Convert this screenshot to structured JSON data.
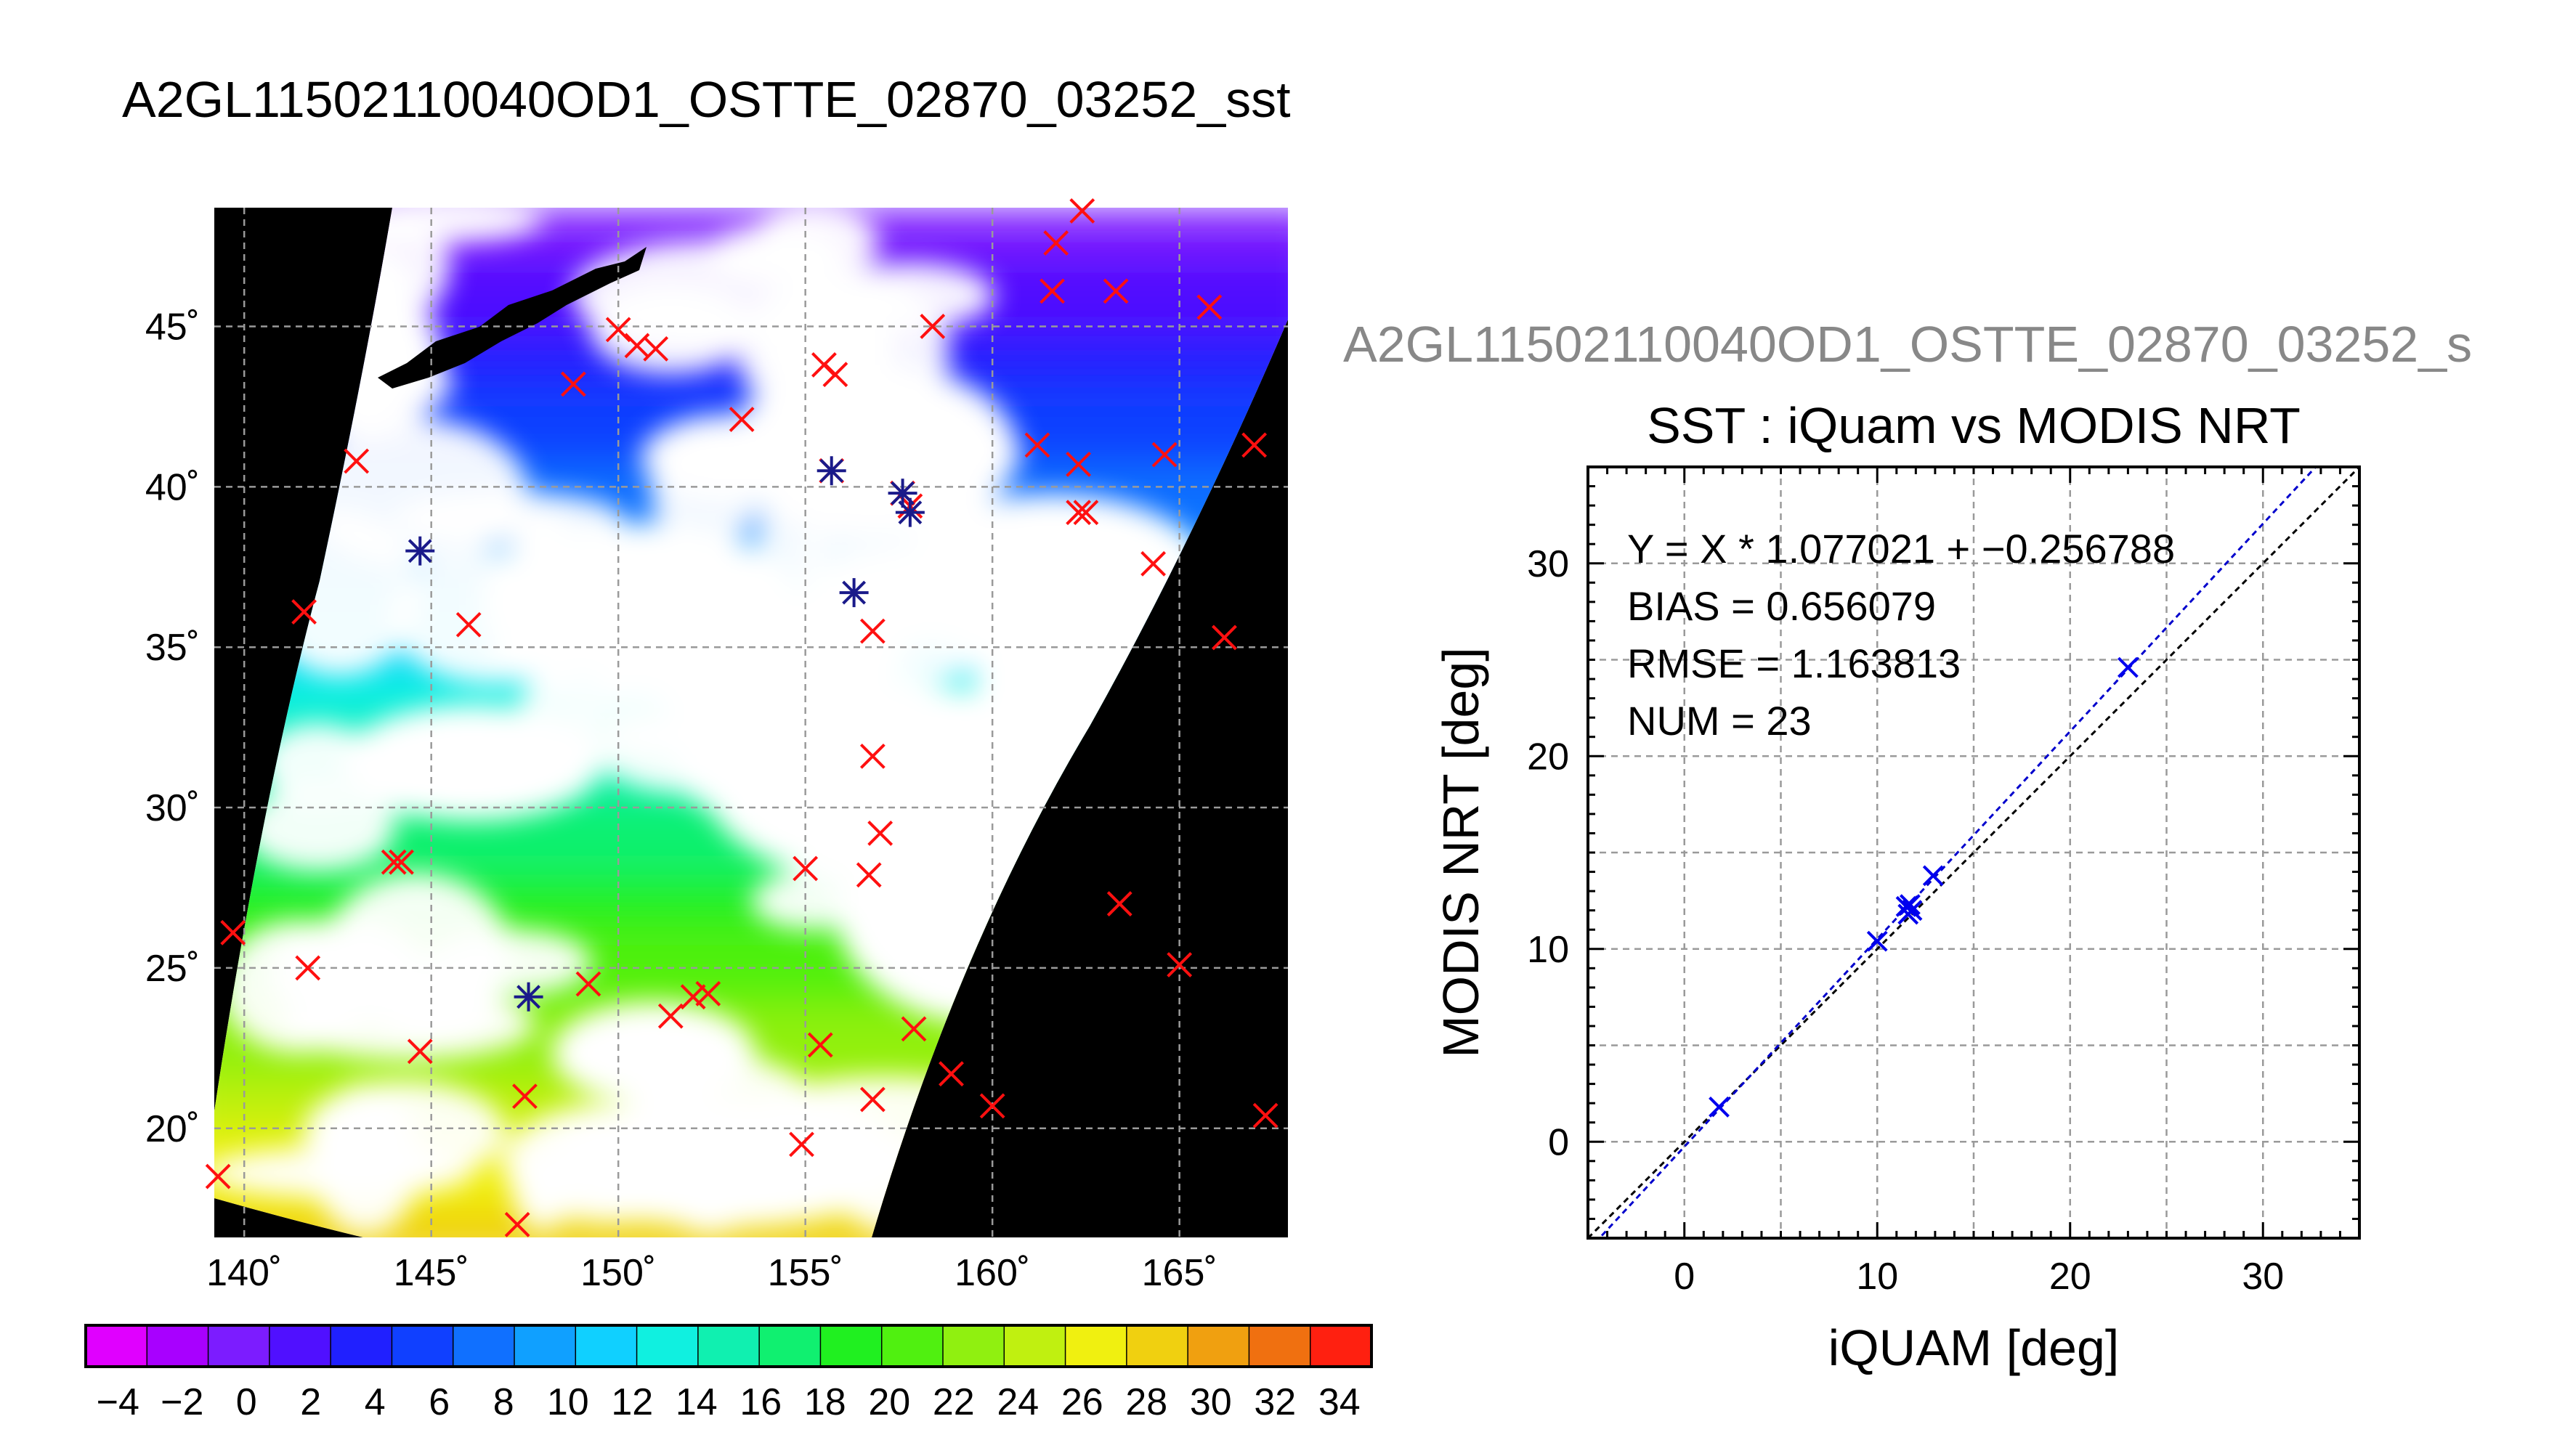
{
  "figure_title": "A2GL11502110040OD1_OSTTE_02870_03252_sst",
  "colors": {
    "background": "#ffffff",
    "map_background": "#000000",
    "cloud": "#ffffff",
    "grid": "#9a9a9a",
    "match_marker": "#ff1010",
    "overlap_marker": "#1a1a8a",
    "scatter_marker": "#0000ee",
    "fit_line": "#0000cc",
    "one_to_one_line": "#000000",
    "subtitle": "#888888"
  },
  "chart_data": [
    {
      "type": "map",
      "title": "",
      "lon_ticks": [
        "140˚",
        "145˚",
        "150˚",
        "155˚",
        "160˚",
        "165˚"
      ],
      "lat_ticks": [
        "20˚",
        "25˚",
        "30˚",
        "35˚",
        "40˚",
        "45˚"
      ],
      "lon_values": [
        140,
        145,
        150,
        155,
        160,
        165
      ],
      "lat_values": [
        20,
        25,
        30,
        35,
        40,
        45
      ],
      "lon_range": [
        139.2,
        167.9
      ],
      "lat_range": [
        16.6,
        48.7
      ],
      "grid": true,
      "colorbar": {
        "labels": [
          "−4",
          "−2",
          "0",
          "2",
          "4",
          "6",
          "8",
          "10",
          "12",
          "14",
          "16",
          "18",
          "20",
          "22",
          "24",
          "26",
          "28",
          "30",
          "32",
          "34"
        ],
        "min": -5,
        "max": 35,
        "step": 2,
        "colors": [
          "#e000ff",
          "#a800ff",
          "#7c1cff",
          "#5010ff",
          "#2020ff",
          "#1040ff",
          "#1070ff",
          "#10a0ff",
          "#10d0ff",
          "#10f0e0",
          "#10f0b0",
          "#10f070",
          "#20f020",
          "#50f010",
          "#90f010",
          "#c0f010",
          "#f0f010",
          "#f0d010",
          "#f0a010",
          "#f07010",
          "#ff2010"
        ]
      },
      "matchups_red": [
        {
          "lon": 162.4,
          "lat": 48.6
        },
        {
          "lon": 161.7,
          "lat": 47.6
        },
        {
          "lon": 161.6,
          "lat": 46.1
        },
        {
          "lon": 163.3,
          "lat": 46.1
        },
        {
          "lon": 165.8,
          "lat": 45.6
        },
        {
          "lon": 158.4,
          "lat": 45.0
        },
        {
          "lon": 150.0,
          "lat": 44.9
        },
        {
          "lon": 150.5,
          "lat": 44.4
        },
        {
          "lon": 151.0,
          "lat": 44.3
        },
        {
          "lon": 155.5,
          "lat": 43.8
        },
        {
          "lon": 155.8,
          "lat": 43.5
        },
        {
          "lon": 148.8,
          "lat": 43.2
        },
        {
          "lon": 153.3,
          "lat": 42.1
        },
        {
          "lon": 161.2,
          "lat": 41.3
        },
        {
          "lon": 164.6,
          "lat": 41.0
        },
        {
          "lon": 167.0,
          "lat": 41.3
        },
        {
          "lon": 162.3,
          "lat": 40.7
        },
        {
          "lon": 143.0,
          "lat": 40.8
        },
        {
          "lon": 155.7,
          "lat": 40.5
        },
        {
          "lon": 157.6,
          "lat": 39.8
        },
        {
          "lon": 157.8,
          "lat": 39.4
        },
        {
          "lon": 162.3,
          "lat": 39.2
        },
        {
          "lon": 162.5,
          "lat": 39.2
        },
        {
          "lon": 164.3,
          "lat": 37.6
        },
        {
          "lon": 141.6,
          "lat": 36.1
        },
        {
          "lon": 146.0,
          "lat": 35.7
        },
        {
          "lon": 156.8,
          "lat": 35.5
        },
        {
          "lon": 166.2,
          "lat": 35.3
        },
        {
          "lon": 156.8,
          "lat": 31.6
        },
        {
          "lon": 157.0,
          "lat": 29.2
        },
        {
          "lon": 144.0,
          "lat": 28.3
        },
        {
          "lon": 144.2,
          "lat": 28.3
        },
        {
          "lon": 155.0,
          "lat": 28.1
        },
        {
          "lon": 156.7,
          "lat": 27.9
        },
        {
          "lon": 163.4,
          "lat": 27.0
        },
        {
          "lon": 139.7,
          "lat": 26.1
        },
        {
          "lon": 141.7,
          "lat": 25.0
        },
        {
          "lon": 165.0,
          "lat": 25.1
        },
        {
          "lon": 149.2,
          "lat": 24.5
        },
        {
          "lon": 152.0,
          "lat": 24.1
        },
        {
          "lon": 152.4,
          "lat": 24.2
        },
        {
          "lon": 151.4,
          "lat": 23.5
        },
        {
          "lon": 157.9,
          "lat": 23.1
        },
        {
          "lon": 155.4,
          "lat": 22.6
        },
        {
          "lon": 144.7,
          "lat": 22.4
        },
        {
          "lon": 158.9,
          "lat": 21.7
        },
        {
          "lon": 147.5,
          "lat": 21.0
        },
        {
          "lon": 156.8,
          "lat": 20.9
        },
        {
          "lon": 160.0,
          "lat": 20.7
        },
        {
          "lon": 167.3,
          "lat": 20.4
        },
        {
          "lon": 154.9,
          "lat": 19.5
        },
        {
          "lon": 139.3,
          "lat": 18.5
        },
        {
          "lon": 147.3,
          "lat": 17.0
        }
      ],
      "matchups_blue": [
        {
          "lon": 144.7,
          "lat": 38.0
        },
        {
          "lon": 155.7,
          "lat": 40.5
        },
        {
          "lon": 157.6,
          "lat": 39.8
        },
        {
          "lon": 157.8,
          "lat": 39.2
        },
        {
          "lon": 156.3,
          "lat": 36.7
        },
        {
          "lon": 147.6,
          "lat": 24.1
        }
      ]
    },
    {
      "type": "scatter",
      "super_title": "A2GL11502110040OD1_OSTTE_02870_03252_s",
      "title": "SST : iQuam vs MODIS NRT",
      "xlabel": "iQUAM [deg]",
      "ylabel": "MODIS NRT [deg]",
      "xlim": [
        -5,
        35
      ],
      "ylim": [
        -5,
        35
      ],
      "xticks": [
        "0",
        "10",
        "20",
        "30"
      ],
      "yticks": [
        "0",
        "10",
        "20",
        "30"
      ],
      "xtick_values": [
        0,
        10,
        20,
        30
      ],
      "ytick_values": [
        0,
        10,
        20,
        30
      ],
      "grid_step": 5,
      "grid": true,
      "annotations": [
        "Y = X * 1.077021 + −0.256788",
        "BIAS = 0.656079",
        "RMSE = 1.163813",
        "NUM = 23"
      ],
      "fit": {
        "slope": 1.077021,
        "intercept": -0.256788
      },
      "points": [
        {
          "x": 1.8,
          "y": 1.8
        },
        {
          "x": 10.0,
          "y": 10.4
        },
        {
          "x": 11.5,
          "y": 12.2
        },
        {
          "x": 11.6,
          "y": 11.8
        },
        {
          "x": 11.7,
          "y": 12.3
        },
        {
          "x": 11.8,
          "y": 12.0
        },
        {
          "x": 12.9,
          "y": 13.8
        },
        {
          "x": 23.0,
          "y": 24.6
        }
      ]
    }
  ]
}
